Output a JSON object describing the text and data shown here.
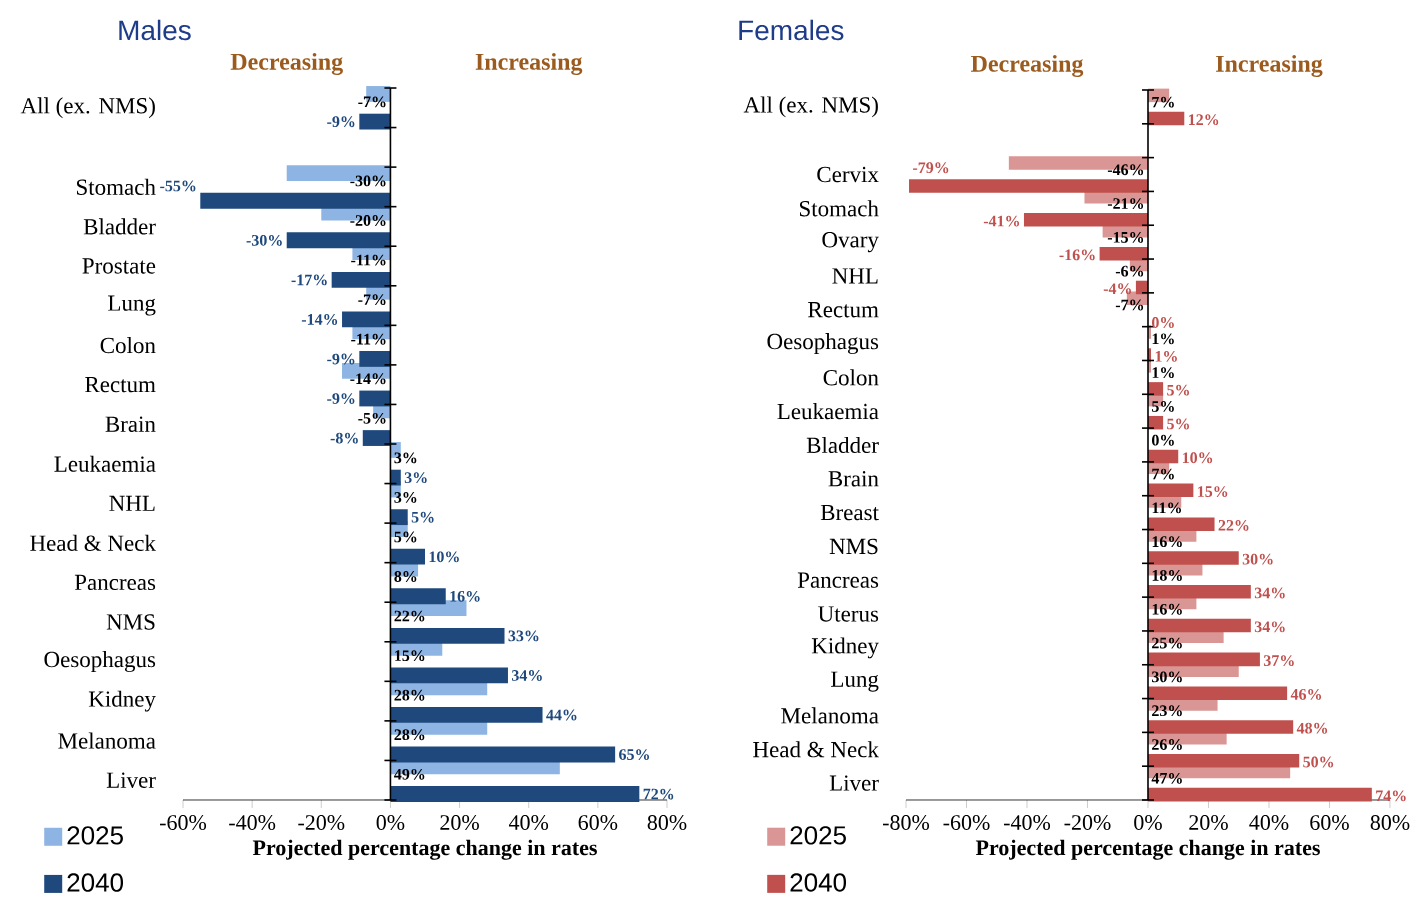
{
  "chart_data": [
    {
      "type": "bar",
      "orientation": "horizontal",
      "title": "Males",
      "xlabel": "Projected percentage change in rates",
      "annotations": [
        "Decreasing",
        "Increasing"
      ],
      "categories": [
        "All (ex. NMS)",
        null,
        "Stomach",
        "Bladder",
        "Prostate",
        "Lung",
        "Colon",
        "Rectum",
        "Brain",
        "Leukaemia",
        "NHL",
        "Head & Neck",
        "Pancreas",
        "NMS",
        "Oesophagus",
        "Kidney",
        "Melanoma",
        "Liver"
      ],
      "series": [
        {
          "name": "2025",
          "color": "#8db4e2",
          "values": [
            -7,
            null,
            -30,
            -20,
            -11,
            -7,
            -11,
            -14,
            -5,
            3,
            3,
            5,
            8,
            22,
            15,
            28,
            28,
            49
          ],
          "value_labels": [
            "-7%",
            null,
            "-30%",
            "-20%",
            "-11%",
            "-7%",
            "-11%",
            "-14%",
            "-5%",
            "3%",
            "3%",
            "5%",
            "8%",
            "22%",
            "15%",
            "28%",
            "28%",
            "49%"
          ]
        },
        {
          "name": "2040",
          "color": "#1f497d",
          "values": [
            -9,
            null,
            -55,
            -30,
            -17,
            -14,
            -9,
            -9,
            -8,
            3,
            5,
            10,
            16,
            33,
            34,
            44,
            65,
            72
          ],
          "value_labels": [
            "-9%",
            null,
            "-55%",
            "-30%",
            "-17%",
            "-14%",
            "-9%",
            "-9%",
            "-8%",
            "3%",
            "5%",
            "10%",
            "16%",
            "33%",
            "34%",
            "44%",
            "65%",
            "72%"
          ]
        }
      ],
      "xlim": [
        -60,
        80
      ],
      "xticks": [
        {
          "value": -60,
          "label": "-60%"
        },
        {
          "value": -40,
          "label": "-40%"
        },
        {
          "value": -20,
          "label": "-20%"
        },
        {
          "value": 0,
          "label": "0%"
        },
        {
          "value": 20,
          "label": "20%"
        },
        {
          "value": 40,
          "label": "40%"
        },
        {
          "value": 60,
          "label": "60%"
        },
        {
          "value": 80,
          "label": "80%"
        }
      ],
      "legend": "bottom left"
    },
    {
      "type": "bar",
      "orientation": "horizontal",
      "title": "Females",
      "xlabel": "Projected percentage change in rates",
      "annotations": [
        "Decreasing",
        "Increasing"
      ],
      "categories": [
        "All (ex. NMS)",
        null,
        "Cervix",
        "Stomach",
        "Ovary",
        "NHL",
        "Rectum",
        "Oesophagus",
        "Colon",
        "Leukaemia",
        "Bladder",
        "Brain",
        "Breast",
        "NMS",
        "Pancreas",
        "Uterus",
        "Kidney",
        "Lung",
        "Melanoma",
        "Head & Neck",
        "Liver"
      ],
      "series": [
        {
          "name": "2025",
          "color": "#da9694",
          "values": [
            7,
            null,
            -46,
            -21,
            -15,
            -6,
            -7,
            1,
            1,
            5,
            0,
            7,
            11,
            16,
            18,
            16,
            25,
            30,
            23,
            26,
            47
          ],
          "value_labels": [
            "7%",
            null,
            "-46%",
            "-21%",
            "-15%",
            "-6%",
            "-7%",
            "1%",
            "1%",
            "5%",
            "0%",
            "7%",
            "11%",
            "16%",
            "18%",
            "16%",
            "25%",
            "30%",
            "23%",
            "26%",
            "47%"
          ]
        },
        {
          "name": "2040",
          "color": "#c0504d",
          "values": [
            12,
            null,
            -79,
            -41,
            -16,
            -4,
            0,
            1,
            5,
            5,
            10,
            15,
            22,
            30,
            34,
            34,
            37,
            46,
            48,
            50,
            74
          ],
          "value_labels": [
            "12%",
            null,
            "-79%",
            "-41%",
            "-16%",
            "-4%",
            "0%",
            "1%",
            "5%",
            "5%",
            "10%",
            "15%",
            "22%",
            "30%",
            "34%",
            "34%",
            "37%",
            "46%",
            "48%",
            "50%",
            "74%"
          ]
        }
      ],
      "xlim": [
        -80,
        80
      ],
      "xticks": [
        {
          "value": -80,
          "label": "-80%"
        },
        {
          "value": -60,
          "label": "-60%"
        },
        {
          "value": -40,
          "label": "-40%"
        },
        {
          "value": -20,
          "label": "-20%"
        },
        {
          "value": 0,
          "label": "0%"
        },
        {
          "value": 20,
          "label": "20%"
        },
        {
          "value": 40,
          "label": "40%"
        },
        {
          "value": 60,
          "label": "60%"
        },
        {
          "value": 80,
          "label": "80%"
        }
      ],
      "legend": "bottom left"
    }
  ]
}
